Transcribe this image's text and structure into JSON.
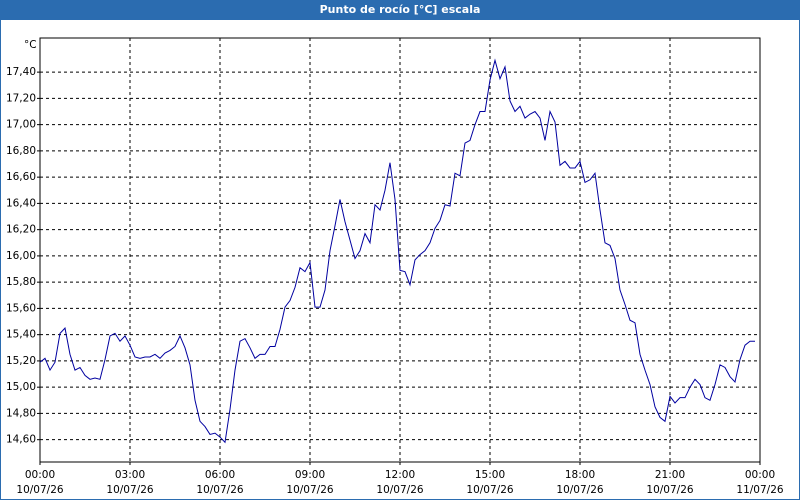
{
  "chart_data": {
    "type": "line",
    "title": "Punto de rocío [°C] escala",
    "y_label": "°C",
    "x": [
      0,
      10,
      20,
      30,
      40,
      50,
      60,
      70,
      80,
      90,
      100,
      110,
      120,
      130,
      140,
      150,
      160,
      170,
      180,
      190,
      200,
      210,
      220,
      230,
      240,
      250,
      260,
      270,
      280,
      290,
      300,
      310,
      320,
      330,
      340,
      350,
      360,
      370,
      380,
      390,
      400,
      410,
      420,
      430,
      440,
      450,
      460,
      470,
      480,
      490,
      500,
      510,
      520,
      530,
      540,
      550,
      560,
      570,
      580,
      590,
      600,
      610,
      620,
      630,
      640,
      650,
      660,
      670,
      680,
      690,
      700,
      710,
      720,
      730,
      740,
      750,
      760,
      770,
      780,
      790,
      800,
      810,
      820,
      830,
      840,
      850,
      860,
      870,
      880,
      890,
      900,
      910,
      920,
      930,
      940,
      950,
      960,
      970,
      980,
      990,
      1000,
      1010,
      1020,
      1030,
      1040,
      1050,
      1060,
      1070,
      1080,
      1090,
      1100,
      1110,
      1120,
      1130,
      1140,
      1150,
      1160,
      1170,
      1180,
      1190,
      1200,
      1210,
      1220,
      1230,
      1240,
      1250,
      1260,
      1270,
      1280,
      1290,
      1300,
      1310,
      1320,
      1330,
      1340,
      1350,
      1360,
      1370,
      1380,
      1390,
      1400,
      1410,
      1420,
      1430
    ],
    "series": [
      {
        "color": "#0000a0",
        "values": [
          15.19,
          15.22,
          15.13,
          15.19,
          15.41,
          15.45,
          15.25,
          15.13,
          15.15,
          15.09,
          15.06,
          15.07,
          15.06,
          15.21,
          15.39,
          15.41,
          15.35,
          15.39,
          15.32,
          15.23,
          15.22,
          15.23,
          15.23,
          15.25,
          15.22,
          15.26,
          15.28,
          15.31,
          15.39,
          15.3,
          15.17,
          14.9,
          14.74,
          14.7,
          14.64,
          14.65,
          14.62,
          14.58,
          14.83,
          15.13,
          15.35,
          15.37,
          15.3,
          15.22,
          15.25,
          15.25,
          15.31,
          15.31,
          15.44,
          15.61,
          15.66,
          15.76,
          15.91,
          15.88,
          15.95,
          15.61,
          15.61,
          15.74,
          16.04,
          16.23,
          16.43,
          16.26,
          16.12,
          15.98,
          16.04,
          16.17,
          16.1,
          16.39,
          16.35,
          16.5,
          16.71,
          16.43,
          15.89,
          15.88,
          15.78,
          15.97,
          16.01,
          16.04,
          16.1,
          16.21,
          16.27,
          16.39,
          16.38,
          16.63,
          16.61,
          16.86,
          16.88,
          17.0,
          17.1,
          17.1,
          17.34,
          17.49,
          17.35,
          17.44,
          17.18,
          17.1,
          17.14,
          17.05,
          17.08,
          17.1,
          17.05,
          16.88,
          17.1,
          17.02,
          16.69,
          16.72,
          16.67,
          16.67,
          16.72,
          16.56,
          16.58,
          16.63,
          16.35,
          16.1,
          16.08,
          15.98,
          15.74,
          15.63,
          15.51,
          15.49,
          15.25,
          15.13,
          15.02,
          14.85,
          14.77,
          14.74,
          14.93,
          14.88,
          14.92,
          14.92,
          15.0,
          15.06,
          15.02,
          14.92,
          14.9,
          15.02,
          15.17,
          15.15,
          15.08,
          15.04,
          15.21,
          15.32,
          15.35,
          15.35
        ]
      }
    ],
    "xlim": [
      0,
      1440
    ],
    "xticks": [
      {
        "value": 0,
        "label": "00:00"
      },
      {
        "value": 180,
        "label": "03:00"
      },
      {
        "value": 360,
        "label": "06:00"
      },
      {
        "value": 540,
        "label": "09:00"
      },
      {
        "value": 720,
        "label": "12:00"
      },
      {
        "value": 900,
        "label": "15:00"
      },
      {
        "value": 1080,
        "label": "18:00"
      },
      {
        "value": 1260,
        "label": "21:00"
      },
      {
        "value": 1440,
        "label": "00:00"
      }
    ],
    "xtick_dates": [
      "10/07/26",
      "10/07/26",
      "10/07/26",
      "10/07/26",
      "10/07/26",
      "10/07/26",
      "10/07/26",
      "10/07/26",
      "11/07/26"
    ],
    "ylim": [
      14.43,
      17.66
    ],
    "yticks": [
      {
        "value": 14.6,
        "label": "14,60"
      },
      {
        "value": 14.8,
        "label": "14,80"
      },
      {
        "value": 15.0,
        "label": "15,00"
      },
      {
        "value": 15.2,
        "label": "15,20"
      },
      {
        "value": 15.4,
        "label": "15,40"
      },
      {
        "value": 15.6,
        "label": "15,60"
      },
      {
        "value": 15.8,
        "label": "15,80"
      },
      {
        "value": 16.0,
        "label": "16,00"
      },
      {
        "value": 16.2,
        "label": "16,20"
      },
      {
        "value": 16.4,
        "label": "16,40"
      },
      {
        "value": 16.6,
        "label": "16,60"
      },
      {
        "value": 16.8,
        "label": "16,80"
      },
      {
        "value": 17.0,
        "label": "17,00"
      },
      {
        "value": 17.2,
        "label": "17,20"
      },
      {
        "value": 17.4,
        "label": "17,40"
      }
    ],
    "grid": true
  }
}
